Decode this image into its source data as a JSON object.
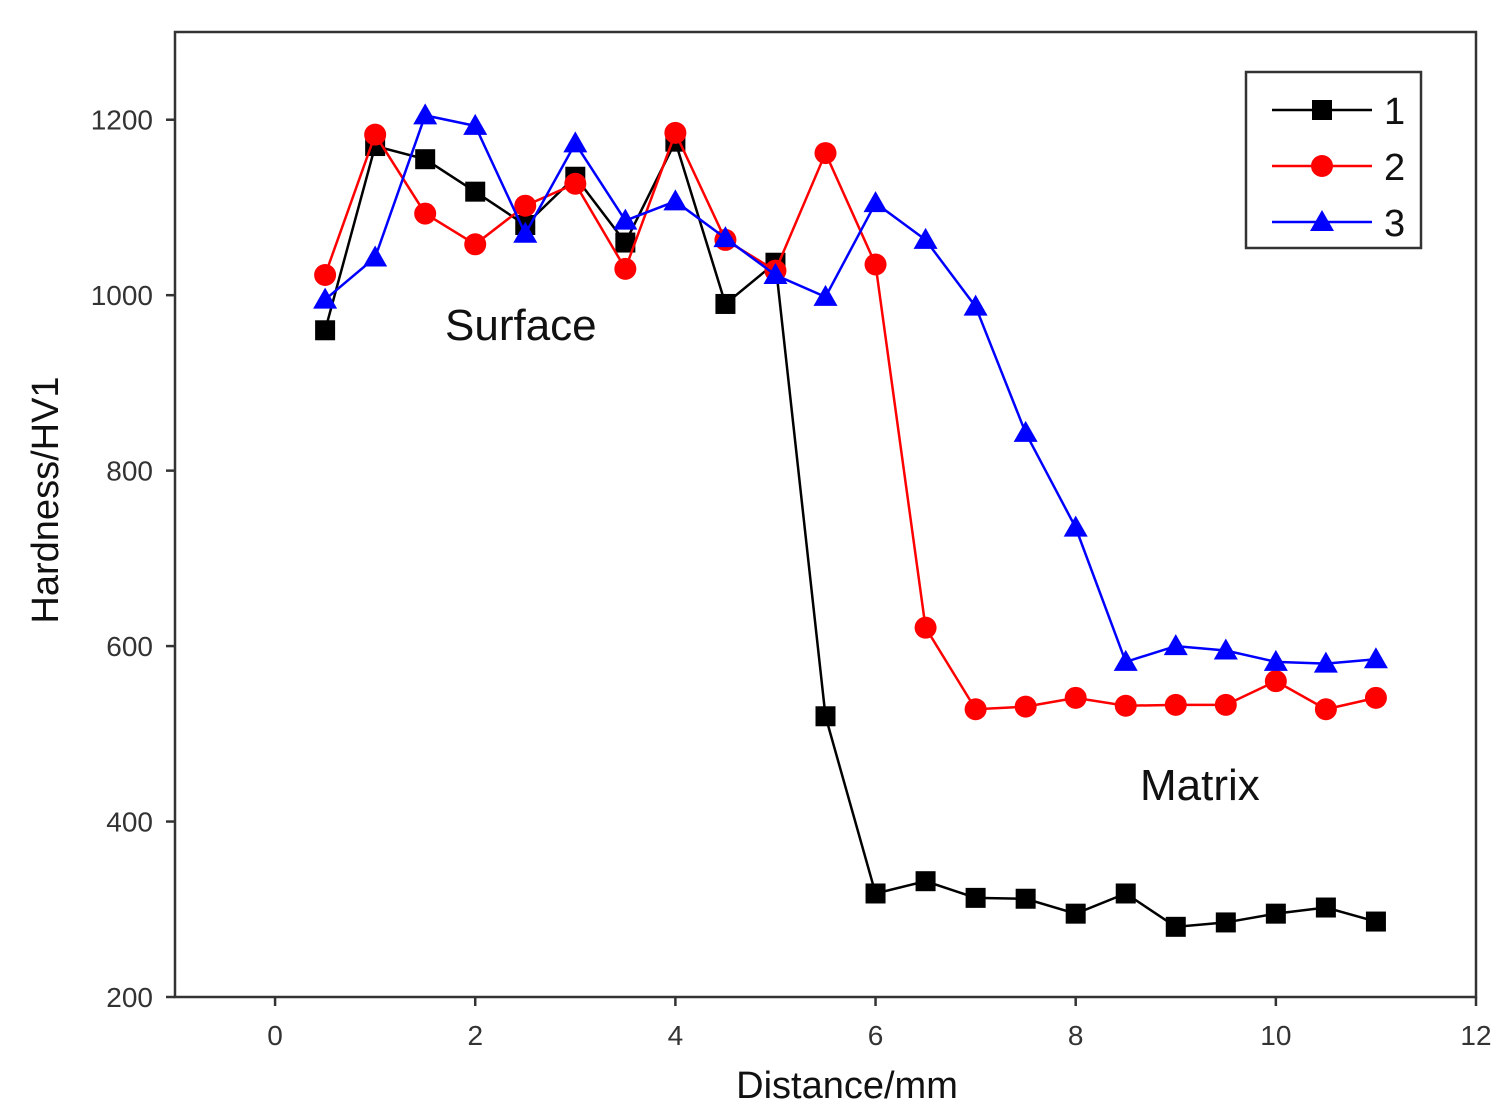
{
  "chart_data": {
    "type": "line",
    "title": "",
    "xlabel": "Distance/mm",
    "ylabel": "Hardness/HV1",
    "xlim": [
      -1,
      12
    ],
    "ylim": [
      200,
      1300
    ],
    "xticks": [
      0,
      2,
      4,
      6,
      8,
      10,
      12
    ],
    "yticks": [
      200,
      400,
      600,
      800,
      1000,
      1200
    ],
    "x": [
      0.5,
      1,
      1.5,
      2,
      2.5,
      3,
      3.5,
      4,
      4.5,
      5,
      5.5,
      6,
      6.5,
      7,
      7.5,
      8,
      8.5,
      9,
      9.5,
      10,
      10.5,
      11
    ],
    "series": [
      {
        "name": "1",
        "color": "#000000",
        "marker": "square",
        "values": [
          960,
          1170,
          1155,
          1118,
          1080,
          1135,
          1060,
          1175,
          990,
          1037,
          520,
          318,
          332,
          313,
          312,
          295,
          318,
          280,
          285,
          295,
          302,
          286
        ]
      },
      {
        "name": "2",
        "color": "#ff0000",
        "marker": "circle",
        "values": [
          1023,
          1183,
          1093,
          1058,
          1102,
          1127,
          1030,
          1185,
          1063,
          1028,
          1162,
          1035,
          621,
          528,
          531,
          541,
          532,
          533,
          533,
          560,
          528,
          541
        ]
      },
      {
        "name": "3",
        "color": "#0000ff",
        "marker": "triangle",
        "values": [
          995,
          1043,
          1205,
          1193,
          1070,
          1173,
          1085,
          1107,
          1065,
          1023,
          998,
          1105,
          1063,
          987,
          843,
          735,
          582,
          600,
          595,
          582,
          580,
          585
        ]
      }
    ],
    "annotations": [
      "Surface",
      "Matrix"
    ],
    "legend": "top-right",
    "grid": false
  }
}
